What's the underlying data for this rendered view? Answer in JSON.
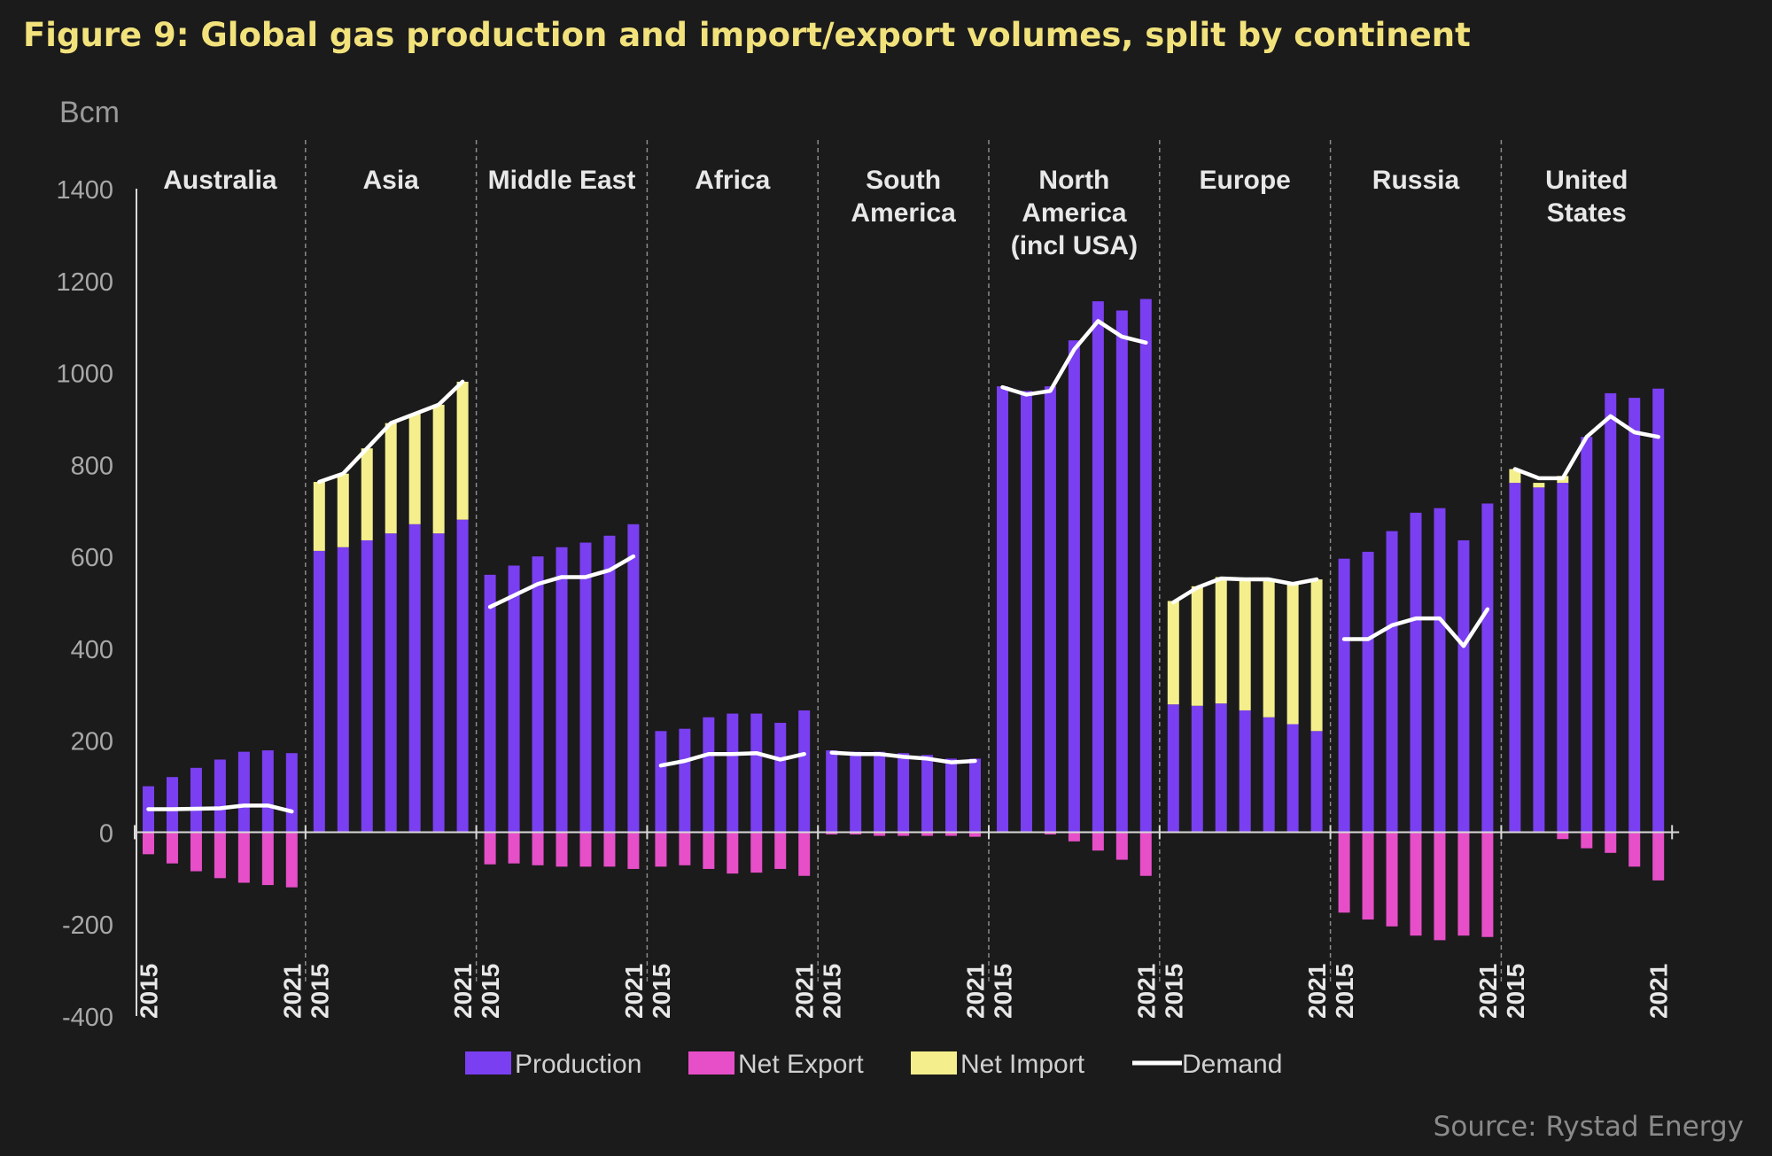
{
  "chart_data": {
    "type": "bar",
    "title": "Figure 9: Global gas production and import/export volumes, split by continent",
    "ylabel": "Bcm",
    "ylim": [
      -400,
      1400
    ],
    "yticks": [
      1400,
      1200,
      1000,
      800,
      600,
      400,
      200,
      0,
      -200,
      -400
    ],
    "grid": false,
    "legend_position": "bottom",
    "source": "Source: Rystad Energy",
    "x": [
      "2015",
      "2016",
      "2017",
      "2018",
      "2019",
      "2020",
      "2021"
    ],
    "x_tick_labels": [
      "2015",
      "2021"
    ],
    "colors": {
      "production": "#7a3ff0",
      "net_export": "#e64fc8",
      "net_import": "#f4ef8c",
      "demand": "#ffffff"
    },
    "legend": [
      "Production",
      "Net Export",
      "Net Import",
      "Demand"
    ],
    "groups": [
      {
        "name": "Australia",
        "label_lines": [
          "Australia"
        ],
        "production": [
          100,
          120,
          140,
          158,
          175,
          178,
          172
        ],
        "net_export": [
          -48,
          -68,
          -85,
          -100,
          -110,
          -115,
          -120
        ],
        "net_import": [
          0,
          0,
          0,
          0,
          0,
          0,
          0
        ],
        "demand": [
          50,
          50,
          51,
          52,
          58,
          58,
          45
        ]
      },
      {
        "name": "Asia",
        "label_lines": [
          "Asia"
        ],
        "production": [
          612,
          620,
          635,
          650,
          670,
          650,
          680
        ],
        "net_export": [
          0,
          0,
          0,
          0,
          0,
          0,
          0
        ],
        "net_import": [
          150,
          160,
          200,
          240,
          240,
          280,
          300
        ],
        "demand": [
          762,
          780,
          835,
          890,
          910,
          930,
          980
        ]
      },
      {
        "name": "Middle East",
        "label_lines": [
          "Middle East"
        ],
        "production": [
          560,
          580,
          600,
          620,
          630,
          645,
          670
        ],
        "net_export": [
          -70,
          -68,
          -72,
          -75,
          -75,
          -75,
          -80
        ],
        "net_import": [
          0,
          0,
          0,
          0,
          0,
          0,
          0
        ],
        "demand": [
          490,
          515,
          540,
          555,
          555,
          570,
          600
        ]
      },
      {
        "name": "Africa",
        "label_lines": [
          "Africa"
        ],
        "production": [
          220,
          225,
          250,
          258,
          258,
          238,
          265
        ],
        "net_export": [
          -75,
          -72,
          -80,
          -90,
          -88,
          -80,
          -95
        ],
        "net_import": [
          0,
          0,
          0,
          0,
          0,
          0,
          0
        ],
        "demand": [
          145,
          155,
          170,
          170,
          172,
          158,
          170
        ]
      },
      {
        "name": "South America",
        "label_lines": [
          "South",
          "America"
        ],
        "production": [
          178,
          175,
          175,
          172,
          168,
          160,
          160
        ],
        "net_export": [
          -5,
          -5,
          -8,
          -8,
          -8,
          -8,
          -10
        ],
        "net_import": [
          0,
          0,
          0,
          0,
          0,
          0,
          0
        ],
        "demand": [
          173,
          170,
          170,
          164,
          160,
          152,
          155
        ]
      },
      {
        "name": "North America (incl USA)",
        "label_lines": [
          "North",
          "America",
          "(incl USA)"
        ],
        "production": [
          970,
          960,
          970,
          1070,
          1155,
          1135,
          1160
        ],
        "net_export": [
          -2,
          -2,
          -5,
          -20,
          -40,
          -60,
          -95
        ],
        "net_import": [
          0,
          0,
          0,
          0,
          0,
          0,
          0
        ],
        "demand": [
          968,
          952,
          960,
          1050,
          1112,
          1078,
          1065
        ]
      },
      {
        "name": "Europe",
        "label_lines": [
          "Europe"
        ],
        "production": [
          278,
          275,
          280,
          265,
          250,
          235,
          220
        ],
        "net_export": [
          0,
          0,
          0,
          0,
          0,
          0,
          0
        ],
        "net_import": [
          225,
          260,
          275,
          285,
          300,
          305,
          330
        ],
        "demand": [
          500,
          532,
          552,
          550,
          550,
          540,
          550
        ]
      },
      {
        "name": "Russia",
        "label_lines": [
          "Russia"
        ],
        "production": [
          595,
          610,
          655,
          695,
          705,
          635,
          715
        ],
        "net_export": [
          -175,
          -190,
          -205,
          -225,
          -235,
          -225,
          -228
        ],
        "net_import": [
          0,
          0,
          0,
          0,
          0,
          0,
          0
        ],
        "demand": [
          420,
          420,
          450,
          465,
          465,
          405,
          485
        ]
      },
      {
        "name": "United States",
        "label_lines": [
          "United",
          "States"
        ],
        "production": [
          760,
          750,
          760,
          860,
          955,
          945,
          965
        ],
        "net_export": [
          0,
          0,
          -15,
          -35,
          -45,
          -75,
          -105
        ],
        "net_import": [
          30,
          10,
          15,
          0,
          0,
          0,
          0
        ],
        "demand": [
          790,
          770,
          770,
          860,
          905,
          870,
          860
        ]
      }
    ]
  }
}
